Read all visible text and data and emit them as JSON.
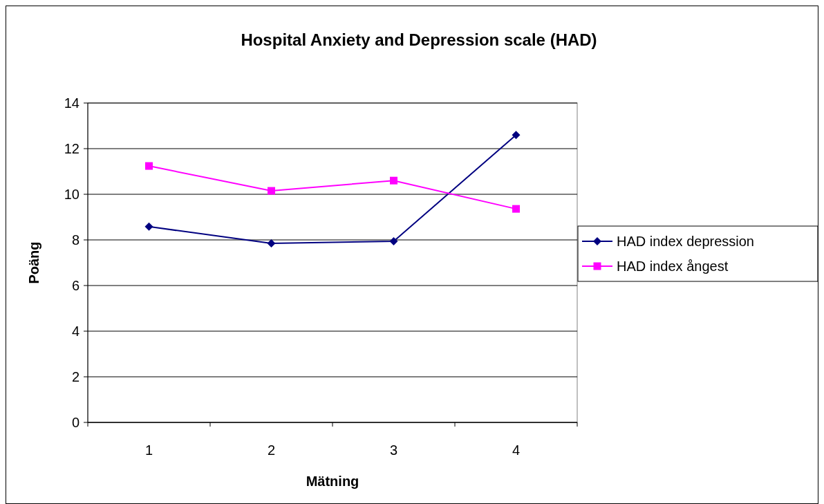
{
  "chart_data": {
    "type": "line",
    "title": "Hospital Anxiety and Depression scale  (HAD)",
    "xlabel": "Mätning",
    "ylabel": "Poäng",
    "categories": [
      "1",
      "2",
      "3",
      "4"
    ],
    "series": [
      {
        "name": "HAD index depression",
        "color": "#000080",
        "marker": "diamond",
        "values": [
          8.58,
          7.85,
          7.94,
          12.6
        ]
      },
      {
        "name": "HAD index ångest",
        "color": "#ff00ff",
        "marker": "square",
        "values": [
          11.24,
          10.15,
          10.6,
          9.36
        ]
      }
    ],
    "ylim": [
      0,
      14
    ],
    "yticks": [
      0,
      2,
      4,
      6,
      8,
      10,
      12,
      14
    ],
    "grid": "y",
    "legend": "right"
  }
}
